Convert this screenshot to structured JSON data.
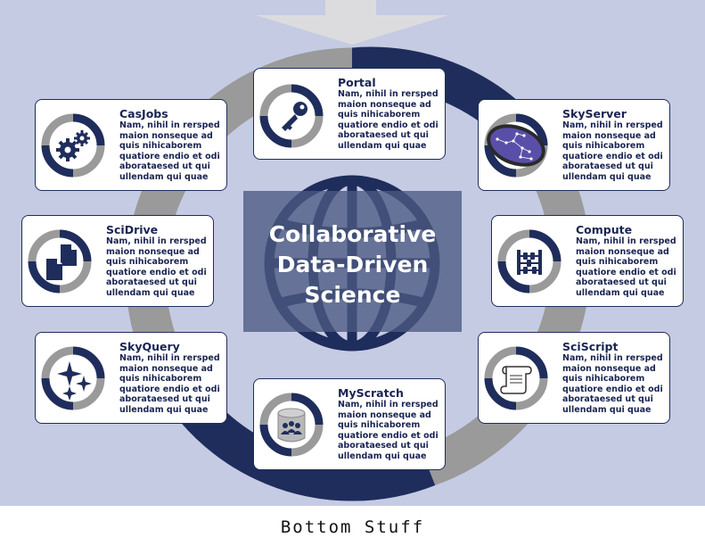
{
  "title": "Collaborative Data-Driven Science",
  "footer": "Bottom Stuff",
  "colors": {
    "background": "#c5cbe3",
    "navy": "#1f2d5c",
    "grey": "#9a9a9a",
    "card": "#ffffff"
  },
  "nodes": [
    {
      "name": "Portal",
      "icon": "key-icon",
      "description": "Nam, nihil in rersped maion nonseque ad quis nihicaborem quatiore endio et odi aborataesed ut qui ullendam qui quae"
    },
    {
      "name": "CasJobs",
      "icon": "gears-icon",
      "description": "Nam, nihil in rersped maion nonseque ad quis nihicaborem quatiore endio et odi aborataesed ut qui ullendam qui quae"
    },
    {
      "name": "SkyServer",
      "icon": "constellation-icon",
      "description": "Nam, nihil in rersped maion nonseque ad quis nihicaborem quatiore endio et odi aborataesed ut qui ullendam qui quae"
    },
    {
      "name": "SciDrive",
      "icon": "documents-icon",
      "description": "Nam, nihil in rersped maion nonseque ad quis nihicaborem quatiore endio et odi aborataesed ut qui ullendam qui quae"
    },
    {
      "name": "Compute",
      "icon": "abacus-icon",
      "description": "Nam, nihil in rersped maion nonseque ad quis nihicaborem quatiore endio et odi aborataesed ut qui ullendam qui quae"
    },
    {
      "name": "SkyQuery",
      "icon": "sparkles-icon",
      "description": "Nam, nihil in rersped maion nonseque ad quis nihicaborem quatiore endio et odi aborataesed ut qui ullendam qui quae"
    },
    {
      "name": "SciScript",
      "icon": "scroll-icon",
      "description": "Nam, nihil in rersped maion nonseque ad quis nihicaborem quatiore endio et odi aborataesed ut qui ullendam qui quae"
    },
    {
      "name": "MyScratch",
      "icon": "database-users-icon",
      "description": "Nam, nihil in rersped maion nonseque ad quis nihicaborem quatiore endio et odi aborataesed ut qui ullendam qui quae"
    }
  ]
}
